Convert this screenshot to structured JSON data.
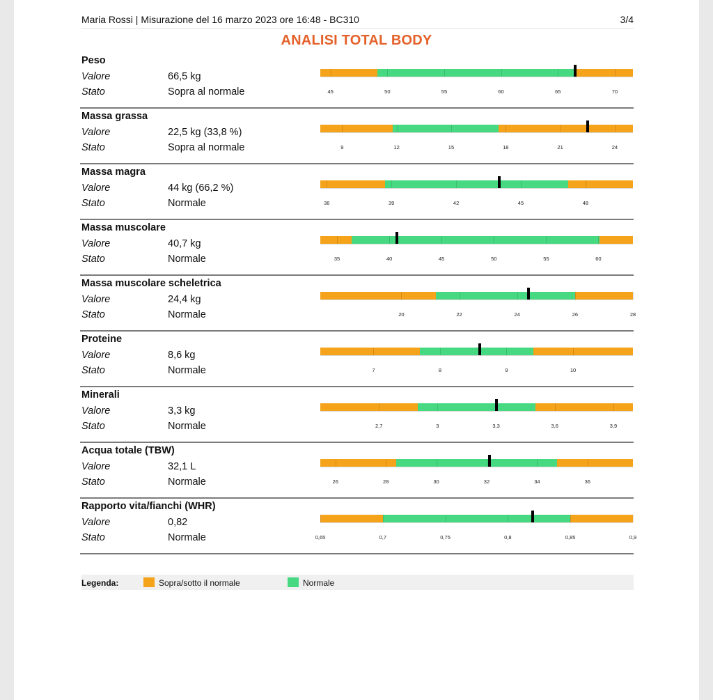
{
  "header": {
    "left": "Maria Rossi | Misurazione del 16 marzo 2023 ore 16:48 - BC310",
    "page": "3/4"
  },
  "title": "ANALISI TOTAL BODY",
  "labels": {
    "value": "Valore",
    "status": "Stato"
  },
  "colors": {
    "out_of_range": "#f5a31b",
    "normal": "#46d981",
    "title": "#e4612a"
  },
  "metrics": [
    {
      "name": "Peso",
      "value": "66,5 kg",
      "status": "Sopra al normale",
      "scale_min": 44.1,
      "scale_max": 71.6,
      "normal_from": 49.1,
      "normal_to": 66.5,
      "measured": 66.5,
      "ticks": [
        "45",
        "50",
        "55",
        "60",
        "65",
        "70"
      ],
      "tick_values": [
        45,
        50,
        55,
        60,
        65,
        70
      ]
    },
    {
      "name": "Massa grassa",
      "value": "22,5 kg (33,8 %)",
      "status": "Sopra al normale",
      "scale_min": 7.8,
      "scale_max": 25.0,
      "normal_from": 11.8,
      "normal_to": 17.6,
      "measured": 22.5,
      "ticks": [
        "9",
        "12",
        "15",
        "18",
        "21",
        "24"
      ],
      "tick_values": [
        9,
        12,
        15,
        18,
        21,
        24
      ]
    },
    {
      "name": "Massa magra",
      "value": "44 kg (66,2 %)",
      "status": "Normale",
      "scale_min": 35.7,
      "scale_max": 50.2,
      "normal_from": 38.7,
      "normal_to": 47.2,
      "measured": 44.0,
      "ticks": [
        "36",
        "39",
        "42",
        "45",
        "48"
      ],
      "tick_values": [
        36,
        39,
        42,
        45,
        48
      ]
    },
    {
      "name": "Massa muscolare",
      "value": "40,7 kg",
      "status": "Normale",
      "scale_min": 33.4,
      "scale_max": 63.3,
      "normal_from": 36.4,
      "normal_to": 60.1,
      "measured": 40.7,
      "ticks": [
        "35",
        "40",
        "45",
        "50",
        "55",
        "60"
      ],
      "tick_values": [
        35,
        40,
        45,
        50,
        55,
        60
      ]
    },
    {
      "name": "Massa muscolare scheletrica",
      "value": "24,4 kg",
      "status": "Normale",
      "scale_min": 17.2,
      "scale_max": 28.0,
      "normal_from": 21.2,
      "normal_to": 26.0,
      "measured": 24.4,
      "ticks": [
        "20",
        "22",
        "24",
        "26",
        "28"
      ],
      "tick_values": [
        20,
        22,
        24,
        26,
        28
      ]
    },
    {
      "name": "Proteine",
      "value": "8,6 kg",
      "status": "Normale",
      "scale_min": 6.2,
      "scale_max": 10.9,
      "normal_from": 7.7,
      "normal_to": 9.4,
      "measured": 8.6,
      "ticks": [
        "7",
        "8",
        "9",
        "10"
      ],
      "tick_values": [
        7,
        8,
        9,
        10
      ]
    },
    {
      "name": "Minerali",
      "value": "3,3 kg",
      "status": "Normale",
      "scale_min": 2.4,
      "scale_max": 4.0,
      "normal_from": 2.9,
      "normal_to": 3.5,
      "measured": 3.3,
      "ticks": [
        "2,7",
        "3",
        "3,3",
        "3,6",
        "3,9"
      ],
      "tick_values": [
        2.7,
        3.0,
        3.3,
        3.6,
        3.9
      ]
    },
    {
      "name": "Acqua totale (TBW)",
      "value": "32,1 L",
      "status": "Normale",
      "scale_min": 25.4,
      "scale_max": 37.8,
      "normal_from": 28.4,
      "normal_to": 34.8,
      "measured": 32.1,
      "ticks": [
        "26",
        "28",
        "30",
        "32",
        "34",
        "36"
      ],
      "tick_values": [
        26,
        28,
        30,
        32,
        34,
        36
      ]
    },
    {
      "name": "Rapporto vita/fianchi (WHR)",
      "value": "0,82",
      "status": "Normale",
      "scale_min": 0.65,
      "scale_max": 0.9,
      "normal_from": 0.7,
      "normal_to": 0.85,
      "measured": 0.82,
      "ticks": [
        "0,65",
        "0,7",
        "0,75",
        "0,8",
        "0,85",
        "0,9"
      ],
      "tick_values": [
        0.65,
        0.7,
        0.75,
        0.8,
        0.85,
        0.9
      ]
    }
  ],
  "legend": {
    "title": "Legenda:",
    "out_of_range": "Sopra/sotto il normale",
    "normal": "Normale"
  }
}
